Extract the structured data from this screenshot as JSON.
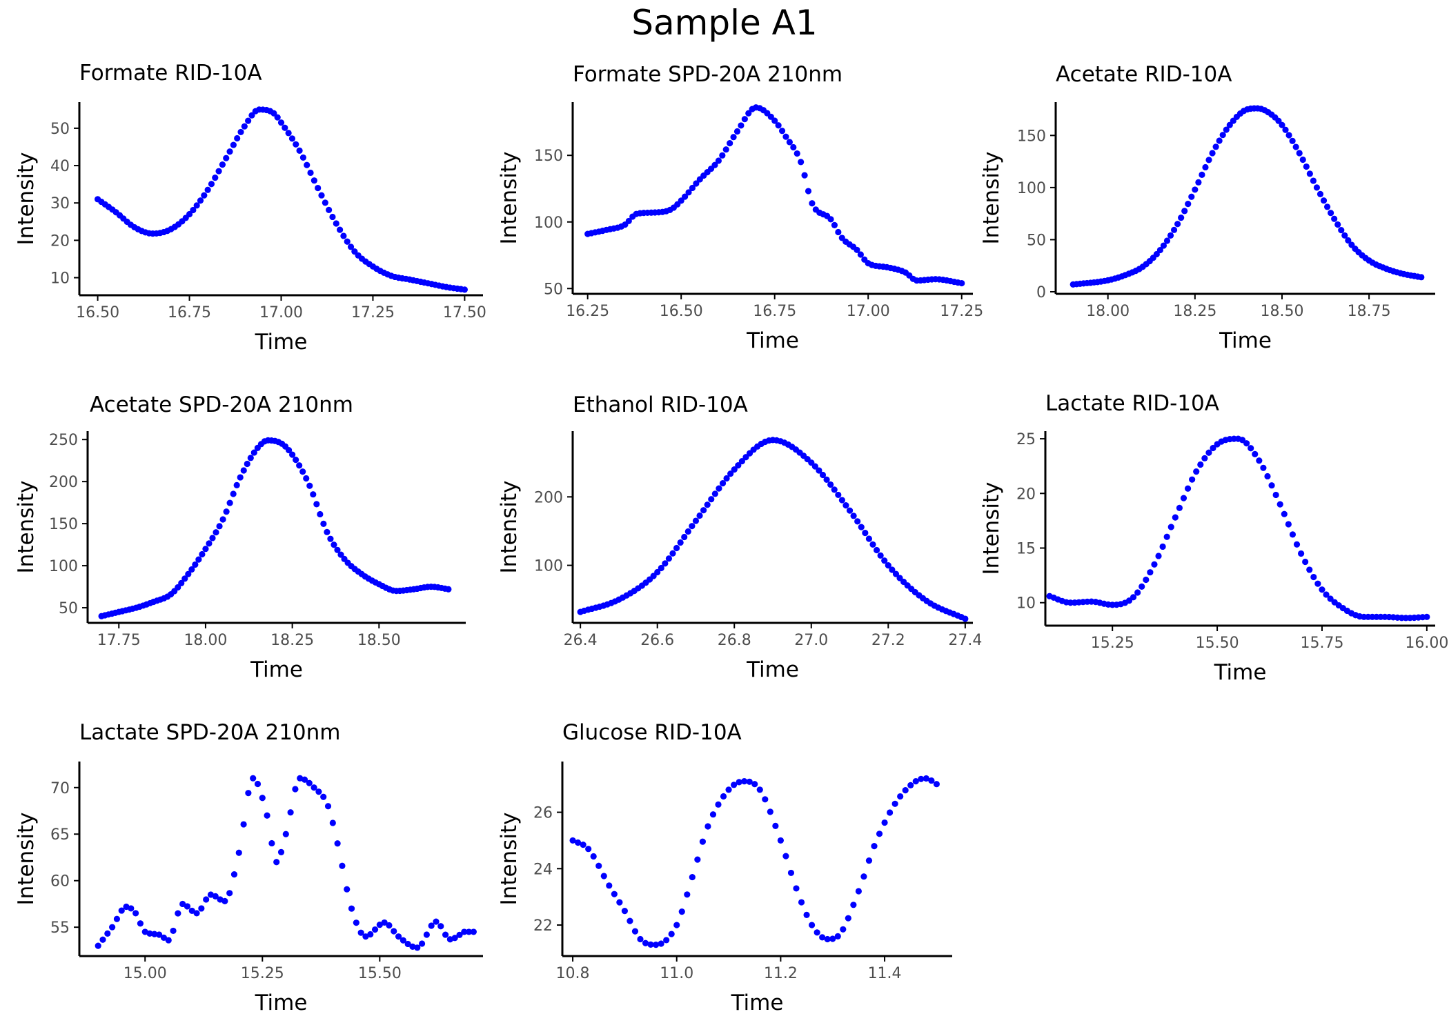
{
  "title": "Sample A1",
  "colors": {
    "points": "#0000ff",
    "axis": "#000000",
    "tick_text": "#4d4d4d"
  },
  "chart_data": [
    {
      "type": "scatter",
      "title": "Formate RID-10A",
      "xlabel": "Time",
      "ylabel": "Intensity",
      "xlim": [
        16.45,
        17.55
      ],
      "ylim": [
        5.3,
        57
      ],
      "xticks": [
        16.5,
        16.75,
        17.0,
        17.25,
        17.5
      ],
      "yticks": [
        10,
        20,
        30,
        40,
        50
      ],
      "xdec": 2,
      "ydec": 0,
      "x_start": 16.5,
      "x_end": 17.5,
      "n_points": 101,
      "knots": [
        [
          16.5,
          31
        ],
        [
          16.55,
          27.5
        ],
        [
          16.6,
          23.5
        ],
        [
          16.65,
          21.8
        ],
        [
          16.7,
          23
        ],
        [
          16.75,
          27
        ],
        [
          16.8,
          33.5
        ],
        [
          16.85,
          42
        ],
        [
          16.9,
          50.5
        ],
        [
          16.94,
          55
        ],
        [
          16.98,
          54
        ],
        [
          17.0,
          51.5
        ],
        [
          17.05,
          44
        ],
        [
          17.1,
          34
        ],
        [
          17.15,
          24.5
        ],
        [
          17.2,
          17
        ],
        [
          17.25,
          13
        ],
        [
          17.3,
          10.5
        ],
        [
          17.35,
          9.5
        ],
        [
          17.4,
          8.5
        ],
        [
          17.45,
          7.5
        ],
        [
          17.5,
          6.8
        ]
      ],
      "grid": false,
      "legend": "none"
    },
    {
      "type": "scatter",
      "title": "Formate SPD-20A 210nm",
      "xlabel": "Time",
      "ylabel": "Intensity",
      "xlim": [
        16.21,
        17.28
      ],
      "ylim": [
        46,
        190
      ],
      "xticks": [
        16.25,
        16.5,
        16.75,
        17.0,
        17.25
      ],
      "yticks": [
        50,
        100,
        150
      ],
      "xdec": 2,
      "ydec": 0,
      "x_start": 16.25,
      "x_end": 17.25,
      "n_points": 101,
      "knots": [
        [
          16.25,
          91
        ],
        [
          16.3,
          94
        ],
        [
          16.35,
          98
        ],
        [
          16.38,
          106
        ],
        [
          16.42,
          107
        ],
        [
          16.47,
          109
        ],
        [
          16.5,
          116
        ],
        [
          16.55,
          132
        ],
        [
          16.6,
          146
        ],
        [
          16.65,
          168
        ],
        [
          16.7,
          186
        ],
        [
          16.75,
          176
        ],
        [
          16.78,
          164
        ],
        [
          16.82,
          145
        ],
        [
          16.85,
          114
        ],
        [
          16.9,
          102
        ],
        [
          16.93,
          88
        ],
        [
          16.97,
          79
        ],
        [
          17.0,
          69
        ],
        [
          17.05,
          66
        ],
        [
          17.1,
          62
        ],
        [
          17.13,
          56
        ],
        [
          17.18,
          57
        ],
        [
          17.25,
          54
        ]
      ],
      "grid": false,
      "legend": "none"
    },
    {
      "type": "scatter",
      "title": "Acetate RID-10A",
      "xlabel": "Time",
      "ylabel": "Intensity",
      "xlim": [
        17.85,
        18.94
      ],
      "ylim": [
        -2,
        182
      ],
      "xticks": [
        18.0,
        18.25,
        18.5,
        18.75
      ],
      "yticks": [
        0,
        50,
        100,
        150
      ],
      "xdec": 2,
      "ydec": 0,
      "x_start": 17.9,
      "x_end": 18.9,
      "n_points": 101,
      "knots": [
        [
          17.9,
          7
        ],
        [
          18.0,
          11
        ],
        [
          18.05,
          16
        ],
        [
          18.1,
          24
        ],
        [
          18.15,
          40
        ],
        [
          18.2,
          65
        ],
        [
          18.25,
          98
        ],
        [
          18.3,
          133
        ],
        [
          18.35,
          160
        ],
        [
          18.4,
          175
        ],
        [
          18.43,
          176
        ],
        [
          18.47,
          170
        ],
        [
          18.5,
          160
        ],
        [
          18.55,
          133
        ],
        [
          18.6,
          100
        ],
        [
          18.65,
          70
        ],
        [
          18.7,
          45
        ],
        [
          18.75,
          30
        ],
        [
          18.8,
          22
        ],
        [
          18.85,
          17
        ],
        [
          18.9,
          14
        ]
      ],
      "grid": false,
      "legend": "none"
    },
    {
      "type": "scatter",
      "title": "Acetate SPD-20A 210nm",
      "xlabel": "Time",
      "ylabel": "Intensity",
      "xlim": [
        17.66,
        18.75
      ],
      "ylim": [
        32,
        260
      ],
      "xticks": [
        17.75,
        18.0,
        18.25,
        18.5
      ],
      "yticks": [
        50,
        100,
        150,
        200,
        250
      ],
      "xdec": 2,
      "ydec": 0,
      "x_start": 17.7,
      "x_end": 18.7,
      "n_points": 101,
      "knots": [
        [
          17.7,
          40
        ],
        [
          17.75,
          45
        ],
        [
          17.8,
          50
        ],
        [
          17.85,
          57
        ],
        [
          17.9,
          66
        ],
        [
          17.95,
          90
        ],
        [
          18.0,
          120
        ],
        [
          18.05,
          155
        ],
        [
          18.1,
          205
        ],
        [
          18.15,
          240
        ],
        [
          18.18,
          249
        ],
        [
          18.22,
          245
        ],
        [
          18.25,
          232
        ],
        [
          18.3,
          195
        ],
        [
          18.35,
          140
        ],
        [
          18.4,
          108
        ],
        [
          18.45,
          90
        ],
        [
          18.5,
          78
        ],
        [
          18.55,
          70
        ],
        [
          18.6,
          72
        ],
        [
          18.65,
          75
        ],
        [
          18.7,
          72
        ]
      ],
      "grid": false,
      "legend": "none"
    },
    {
      "type": "scatter",
      "title": "Ethanol RID-10A",
      "xlabel": "Time",
      "ylabel": "Intensity",
      "xlim": [
        26.38,
        27.42
      ],
      "ylim": [
        16,
        296
      ],
      "xticks": [
        26.4,
        26.6,
        26.8,
        27.0,
        27.2,
        27.4
      ],
      "yticks": [
        100,
        200
      ],
      "xdec": 1,
      "ydec": 0,
      "x_start": 26.4,
      "x_end": 27.4,
      "n_points": 101,
      "knots": [
        [
          26.4,
          32
        ],
        [
          26.5,
          50
        ],
        [
          26.6,
          90
        ],
        [
          26.7,
          165
        ],
        [
          26.8,
          240
        ],
        [
          26.9,
          283
        ],
        [
          27.0,
          250
        ],
        [
          27.1,
          180
        ],
        [
          27.2,
          100
        ],
        [
          27.3,
          48
        ],
        [
          27.4,
          22
        ]
      ],
      "grid": false,
      "legend": "none"
    },
    {
      "type": "scatter",
      "title": "Lactate RID-10A",
      "xlabel": "Time",
      "ylabel": "Intensity",
      "xlim": [
        15.09,
        16.02
      ],
      "ylim": [
        7.9,
        25.7
      ],
      "xticks": [
        15.25,
        15.5,
        15.75,
        16.0
      ],
      "yticks": [
        10,
        15,
        20,
        25
      ],
      "xdec": 2,
      "ydec": 0,
      "x_start": 15.1,
      "x_end": 16.0,
      "n_points": 91,
      "knots": [
        [
          15.1,
          10.6
        ],
        [
          15.15,
          10
        ],
        [
          15.2,
          10.1
        ],
        [
          15.25,
          9.8
        ],
        [
          15.3,
          10.5
        ],
        [
          15.35,
          13.5
        ],
        [
          15.4,
          17.8
        ],
        [
          15.45,
          22
        ],
        [
          15.5,
          24.5
        ],
        [
          15.55,
          25
        ],
        [
          15.6,
          23
        ],
        [
          15.65,
          19
        ],
        [
          15.7,
          14.5
        ],
        [
          15.75,
          11.2
        ],
        [
          15.8,
          9.5
        ],
        [
          15.85,
          8.7
        ],
        [
          15.9,
          8.7
        ],
        [
          15.95,
          8.6
        ],
        [
          16.0,
          8.7
        ]
      ],
      "grid": false,
      "legend": "none"
    },
    {
      "type": "scatter",
      "title": "Lactate SPD-20A 210nm",
      "xlabel": "Time",
      "ylabel": "Intensity",
      "xlim": [
        14.86,
        15.72
      ],
      "ylim": [
        51.9,
        72.8
      ],
      "xticks": [
        15.0,
        15.25,
        15.5
      ],
      "yticks": [
        55,
        60,
        65,
        70
      ],
      "xdec": 2,
      "ydec": 0,
      "x_start": 14.9,
      "x_end": 15.7,
      "n_points": 81,
      "knots": [
        [
          14.9,
          53
        ],
        [
          14.93,
          55
        ],
        [
          14.96,
          57.2
        ],
        [
          14.98,
          56.5
        ],
        [
          15.0,
          54.5
        ],
        [
          15.03,
          54.2
        ],
        [
          15.05,
          53.6
        ],
        [
          15.08,
          57.5
        ],
        [
          15.11,
          56.5
        ],
        [
          15.14,
          58.5
        ],
        [
          15.17,
          57.8
        ],
        [
          15.2,
          63
        ],
        [
          15.23,
          71
        ],
        [
          15.26,
          67
        ],
        [
          15.28,
          62
        ],
        [
          15.3,
          65
        ],
        [
          15.33,
          71
        ],
        [
          15.36,
          70
        ],
        [
          15.39,
          68
        ],
        [
          15.41,
          64
        ],
        [
          15.44,
          57
        ],
        [
          15.47,
          54
        ],
        [
          15.51,
          55.5
        ],
        [
          15.54,
          54
        ],
        [
          15.58,
          52.8
        ],
        [
          15.62,
          55.6
        ],
        [
          15.65,
          53.7
        ],
        [
          15.68,
          54.5
        ]
      ],
      "grid": false,
      "legend": "none"
    },
    {
      "type": "scatter",
      "title": "Glucose RID-10A",
      "xlabel": "Time",
      "ylabel": "Intensity",
      "xlim": [
        10.78,
        11.53
      ],
      "ylim": [
        20.9,
        27.8
      ],
      "xticks": [
        10.8,
        11.0,
        11.2,
        11.4
      ],
      "yticks": [
        22,
        24,
        26
      ],
      "xdec": 1,
      "ydec": 0,
      "x_start": 10.8,
      "x_end": 11.5,
      "n_points": 71,
      "knots": [
        [
          10.8,
          25
        ],
        [
          10.83,
          24.7
        ],
        [
          10.87,
          23.4
        ],
        [
          10.9,
          22.5
        ],
        [
          10.93,
          21.5
        ],
        [
          10.96,
          21.3
        ],
        [
          11.0,
          22
        ],
        [
          11.03,
          23.7
        ],
        [
          11.06,
          25.5
        ],
        [
          11.1,
          26.8
        ],
        [
          11.13,
          27.1
        ],
        [
          11.16,
          26.8
        ],
        [
          11.2,
          25
        ],
        [
          11.23,
          23.3
        ],
        [
          11.26,
          22
        ],
        [
          11.29,
          21.5
        ],
        [
          11.31,
          21.6
        ],
        [
          11.35,
          23.2
        ],
        [
          11.38,
          24.8
        ],
        [
          11.42,
          26.3
        ],
        [
          11.46,
          27.1
        ],
        [
          11.48,
          27.2
        ],
        [
          11.5,
          27
        ]
      ],
      "grid": false,
      "legend": "none"
    }
  ]
}
